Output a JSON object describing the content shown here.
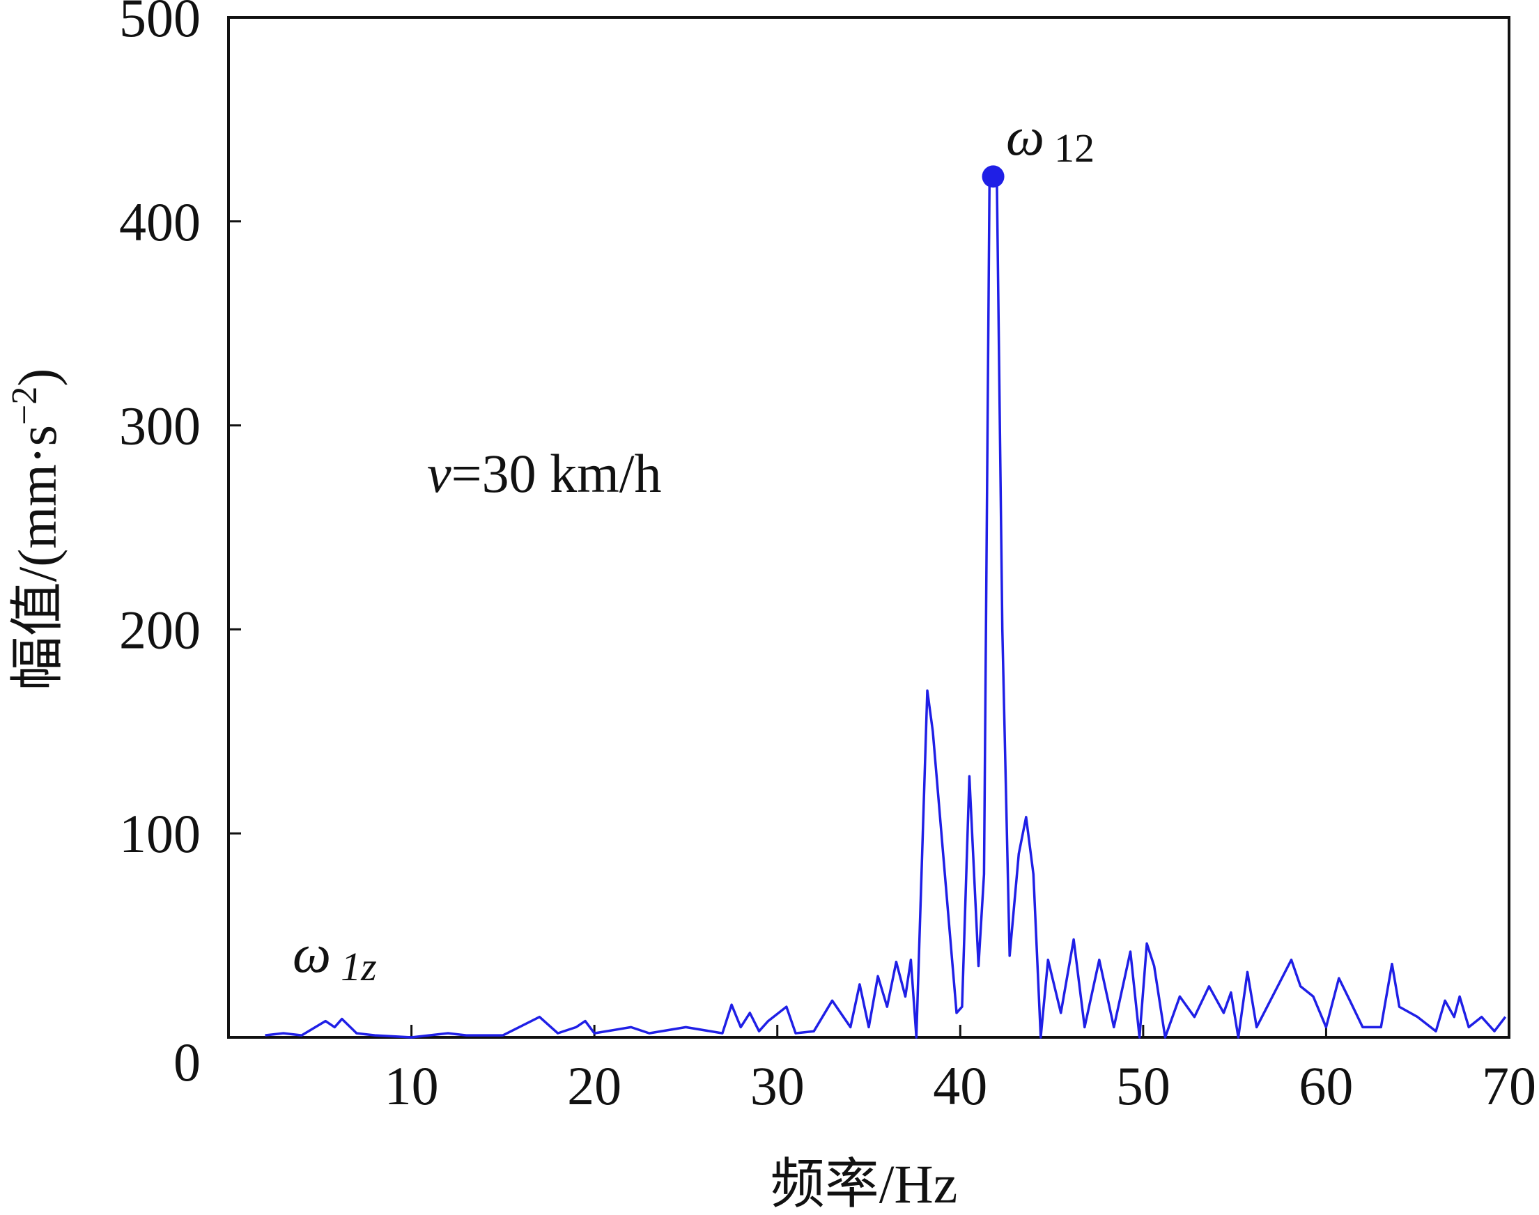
{
  "chart_data": {
    "type": "line",
    "xlabel": "频率/Hz",
    "ylabel": [
      "幅值/(mm·s",
      "−2",
      ")"
    ],
    "xlim": [
      0,
      70
    ],
    "ylim": [
      0,
      500
    ],
    "xticks": [
      10,
      20,
      30,
      40,
      50,
      60,
      70
    ],
    "yticks": [
      0,
      100,
      200,
      300,
      400,
      500
    ],
    "series": [
      {
        "name": "v=30 km/h",
        "color": "#1f1fe6",
        "x": [
          2,
          3,
          4,
          5.3,
          5.8,
          6.2,
          7,
          8,
          10,
          12,
          13,
          15,
          17,
          18,
          19,
          19.5,
          20,
          22,
          23,
          25,
          27,
          27.5,
          28,
          28.5,
          29,
          29.5,
          30.5,
          31,
          32,
          33,
          34,
          34.5,
          35,
          35.5,
          36,
          36.5,
          37,
          37.3,
          37.6,
          38.2,
          38.5,
          39.8,
          40.1,
          40.5,
          41,
          41.3,
          41.6,
          42,
          42.3,
          42.7,
          43.2,
          43.6,
          44,
          44.4,
          44.8,
          45.5,
          46.2,
          46.8,
          47.6,
          48.4,
          49.3,
          49.8,
          50.2,
          50.6,
          51.2,
          52,
          52.8,
          53.6,
          54.4,
          54.8,
          55.2,
          55.7,
          56.2,
          58.1,
          58.6,
          59.3,
          60,
          60.7,
          61.3,
          62,
          63,
          63.6,
          64,
          65,
          66,
          66.5,
          67,
          67.3,
          67.8,
          68.5,
          69.2,
          69.8
        ],
        "values": [
          1,
          2,
          1,
          8,
          5,
          9,
          2,
          1,
          0,
          2,
          1,
          1,
          10,
          2,
          5,
          8,
          2,
          5,
          2,
          5,
          2,
          16,
          5,
          12,
          3,
          8,
          15,
          2,
          3,
          18,
          5,
          26,
          5,
          30,
          15,
          37,
          20,
          38,
          0,
          170,
          150,
          12,
          15,
          128,
          35,
          80,
          420,
          422,
          200,
          40,
          90,
          108,
          80,
          0,
          38,
          12,
          48,
          5,
          38,
          5,
          42,
          0,
          46,
          35,
          0,
          20,
          10,
          25,
          12,
          22,
          0,
          32,
          5,
          38,
          25,
          20,
          5,
          29,
          18,
          5,
          5,
          36,
          15,
          10,
          3,
          18,
          10,
          20,
          5,
          10,
          3,
          10
        ]
      }
    ],
    "peak": {
      "x": 41.8,
      "value": 422,
      "symbol": "ω",
      "sub": "12"
    },
    "annotations": [
      {
        "symbol": "ω",
        "sub": "1z"
      },
      {
        "italic": "v",
        "text": "=30 km/h"
      }
    ]
  }
}
